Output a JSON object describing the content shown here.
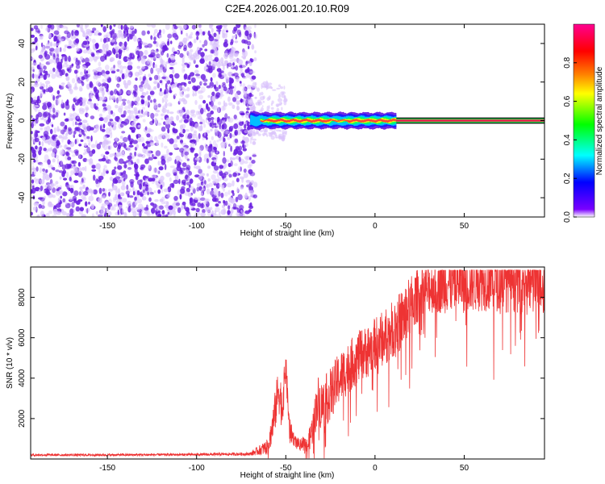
{
  "figure": {
    "title": "C2E4.2026.001.20.10.R09",
    "colors": {
      "snr_line": "#ee3333",
      "scatter_dense": "#6a1fe0",
      "scatter_light": "#d9c2fb",
      "center_line": "#e8224a"
    },
    "colorbar": {
      "label": "Normalized spectral amplitude",
      "ticks": [
        "0.0",
        "0.2",
        "0.4",
        "0.6",
        "0.8"
      ],
      "tick_values": [
        0.0,
        0.2,
        0.4,
        0.6,
        0.8
      ],
      "range": [
        0,
        1
      ],
      "colormap": [
        "#ffffff",
        "#7a00ff",
        "#0000ff",
        "#00ffff",
        "#00ff00",
        "#ffff00",
        "#ff8000",
        "#ff0000",
        "#ff0090"
      ]
    }
  },
  "chart_data": [
    {
      "type": "heatmap",
      "name": "spectrogram",
      "xlabel": "Height of straight line (km)",
      "ylabel": "Frequency (Hz)",
      "xlim": [
        -193,
        95
      ],
      "ylim": [
        -50,
        50
      ],
      "xticks": [
        -150,
        -100,
        -50,
        0,
        50
      ],
      "xtick_labels": [
        "-150",
        "-100",
        "-50",
        "0",
        "50"
      ],
      "yticks": [
        -40,
        -20,
        0,
        20,
        40
      ],
      "ytick_labels": [
        "-40",
        "-20",
        "0",
        "20",
        "40"
      ],
      "regions": [
        {
          "x_range": [
            -193,
            -70
          ],
          "y_range": [
            -50,
            50
          ],
          "amplitude": 0.05,
          "pattern": "noise"
        },
        {
          "x_range": [
            -73,
            -65
          ],
          "y_range": [
            -6,
            6
          ],
          "amplitude": 0.3,
          "pattern": "burst"
        },
        {
          "x_range": [
            -65,
            12
          ],
          "y_range": [
            -4,
            4
          ],
          "amplitude": 0.85,
          "pattern": "narrow-band"
        },
        {
          "x_range": [
            12,
            95
          ],
          "y_range": [
            -1,
            1
          ],
          "amplitude": 0.9,
          "pattern": "line"
        }
      ]
    },
    {
      "type": "line",
      "name": "snr",
      "xlabel": "Height of straight line (km)",
      "ylabel": "SNR (10 * v/v)",
      "xlim": [
        -193,
        95
      ],
      "ylim": [
        0,
        9500
      ],
      "xticks": [
        -150,
        -100,
        -50,
        0,
        50
      ],
      "xtick_labels": [
        "-150",
        "-100",
        "-50",
        "0",
        "50"
      ],
      "yticks": [
        2000,
        4000,
        6000,
        8000
      ],
      "ytick_labels": [
        "2000",
        "4000",
        "6000",
        "8000"
      ],
      "series": [
        {
          "x": [
            -193,
            -150,
            -100,
            -70,
            -60,
            -57,
            -54,
            -52,
            -50,
            -48,
            -45,
            -42,
            -40,
            -38,
            -35,
            -32,
            -30,
            -25,
            -20,
            -15,
            -10,
            -5,
            0,
            5,
            10,
            15,
            20,
            25,
            30,
            35,
            40,
            50,
            60,
            70,
            80,
            95
          ],
          "y": [
            200,
            200,
            220,
            250,
            600,
            1800,
            3500,
            2500,
            4600,
            1500,
            900,
            700,
            900,
            600,
            1500,
            3000,
            2600,
            3200,
            4000,
            4500,
            5000,
            5300,
            5700,
            6000,
            6400,
            6900,
            7600,
            8200,
            8500,
            8600,
            8700,
            8800,
            8900,
            9000,
            9000,
            9000
          ],
          "noise_amplitude": [
            60,
            60,
            60,
            80,
            400,
            900,
            1200,
            1100,
            800,
            600,
            300,
            250,
            300,
            400,
            800,
            1200,
            1300,
            1300,
            1300,
            1300,
            1300,
            1300,
            1300,
            1400,
            1400,
            1500,
            1500,
            1300,
            1300,
            1400,
            1500,
            1600,
            1600,
            1700,
            1800,
            1900
          ]
        }
      ]
    }
  ]
}
